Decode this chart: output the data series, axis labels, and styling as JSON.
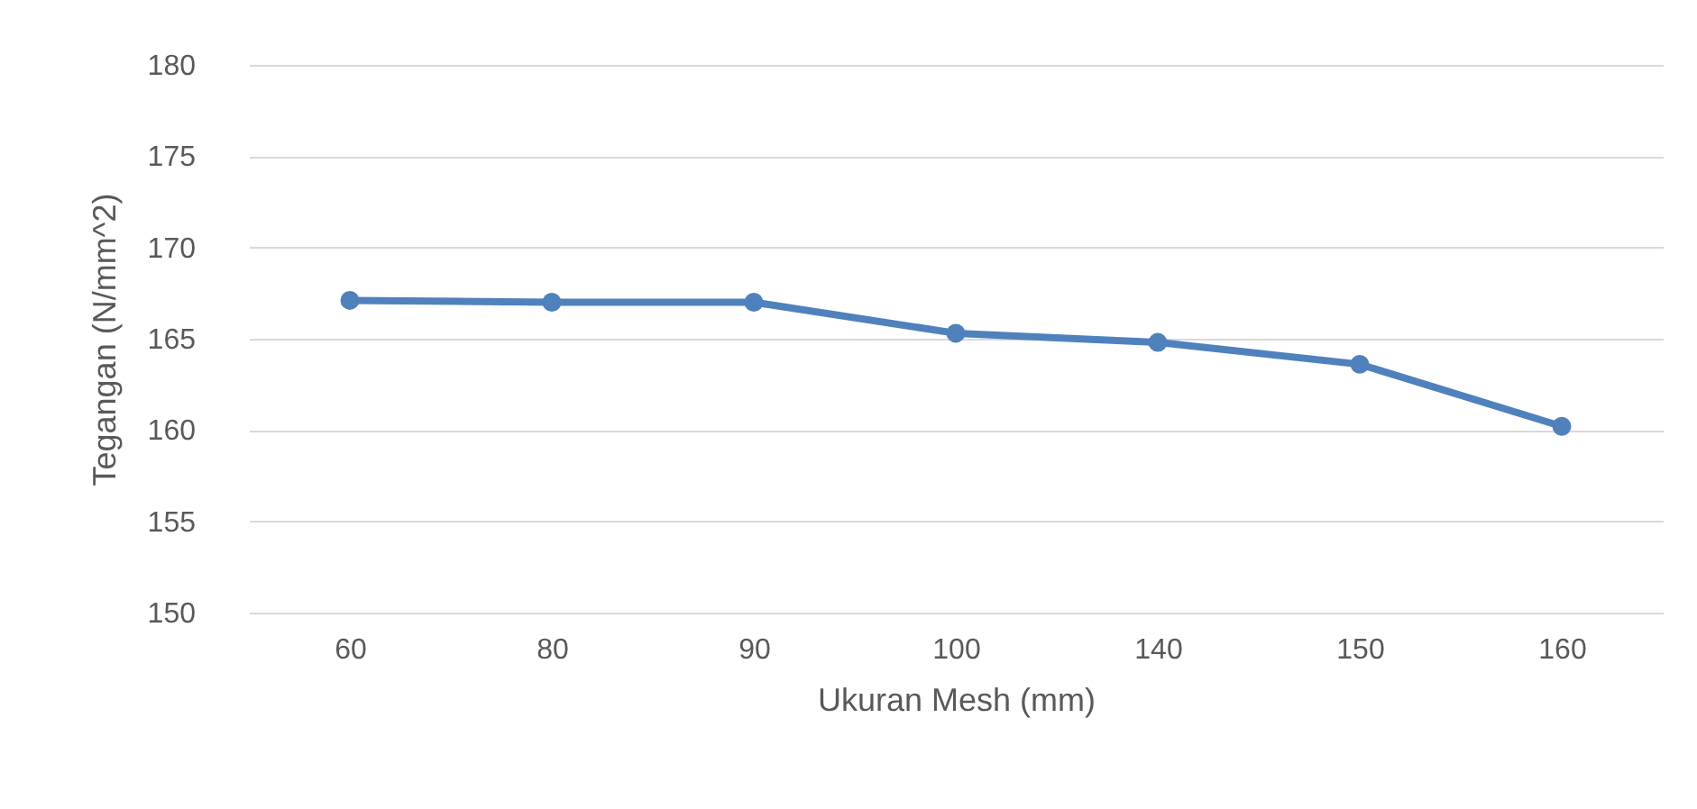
{
  "chart_data": {
    "type": "line",
    "xlabel": "Ukuran Mesh (mm)",
    "ylabel": "Tegangan (N/mm^2)",
    "categories": [
      "60",
      "80",
      "90",
      "100",
      "140",
      "150",
      "160"
    ],
    "series": [
      {
        "color": "#4f81bd",
        "values": [
          167.1,
          167.0,
          167.0,
          165.3,
          164.8,
          163.6,
          160.2
        ]
      }
    ],
    "ylim": [
      150,
      180
    ],
    "yticks": [
      150,
      155,
      160,
      165,
      170,
      175,
      180
    ],
    "grid": "y",
    "marker": "circle",
    "line_style": "solid",
    "legend": false
  }
}
